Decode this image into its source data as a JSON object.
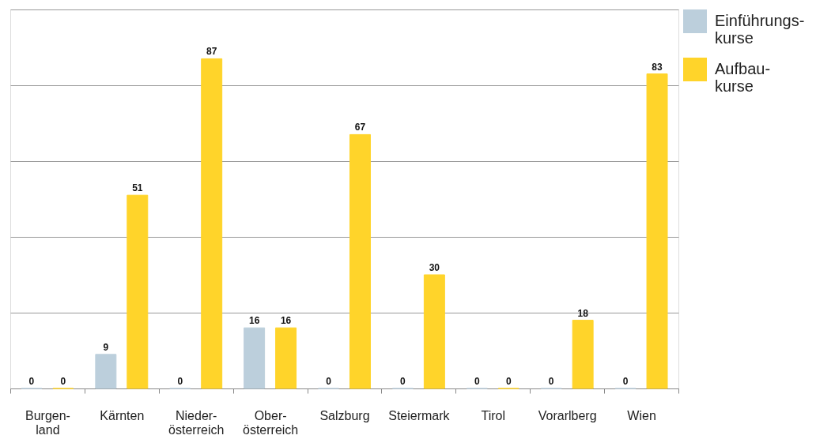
{
  "chart_data": {
    "type": "bar",
    "categories": [
      "Burgen-\nland",
      "Kärnten",
      "Nieder-\nösterreich",
      "Ober-\nösterreich",
      "Salzburg",
      "Steiermark",
      "Tirol",
      "Vorarlberg",
      "Wien"
    ],
    "series": [
      {
        "name": "Einführungs-\nkurse",
        "color": "#bccfdc",
        "values": [
          0,
          9,
          0,
          16,
          0,
          0,
          0,
          0,
          0
        ]
      },
      {
        "name": "Aufbau-\nkurse",
        "color": "#ffd42a",
        "values": [
          0,
          51,
          87,
          16,
          67,
          30,
          0,
          18,
          83
        ]
      }
    ],
    "ylim": [
      0,
      100
    ],
    "yticks": [
      {
        "value": 0,
        "label": null
      },
      {
        "value": 20,
        "label": null
      },
      {
        "value": 40,
        "label": null
      },
      {
        "value": 60,
        "label": null
      },
      {
        "value": 80,
        "label": null
      },
      {
        "value": 100,
        "label": null
      }
    ],
    "grid": "y",
    "tick_labels": "x",
    "legend": "top right",
    "data_labels": true
  }
}
